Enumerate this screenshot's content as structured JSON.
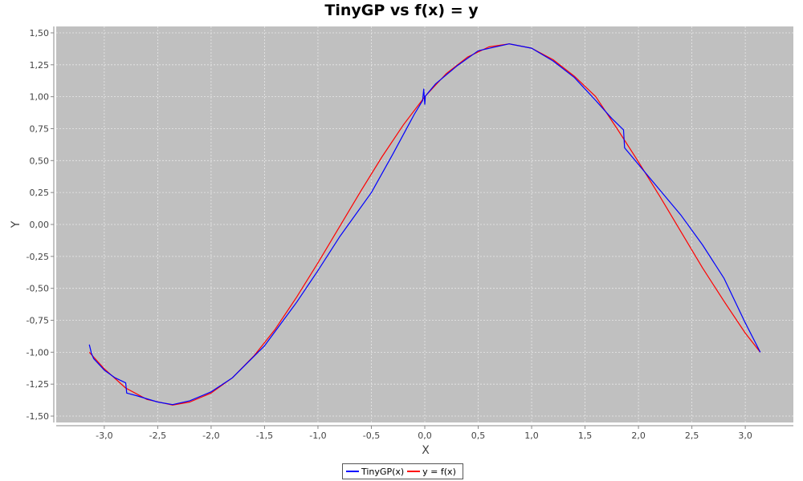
{
  "chart_data": {
    "type": "line",
    "title": "TinyGP vs f(x) = y",
    "xlabel": "X",
    "ylabel": "Y",
    "xlim": [
      -3.45,
      3.45
    ],
    "ylim": [
      -1.55,
      1.55
    ],
    "xticks": [
      "-3,0",
      "-2,5",
      "-2,0",
      "-1,5",
      "-1,0",
      "-0,5",
      "0,0",
      "0,5",
      "1,0",
      "1,5",
      "2,0",
      "2,5",
      "3,0"
    ],
    "yticks": [
      "1,50",
      "1,25",
      "1,00",
      "0,75",
      "0,50",
      "0,25",
      "0,00",
      "-0,25",
      "-0,50",
      "-0,75",
      "-1,00",
      "-1,25",
      "-1,50"
    ],
    "grid": true,
    "legend_position": "bottom",
    "colors": {
      "plot_bg": "#c0c0c0",
      "grid": "#e8e8e8",
      "tinygp": "#0000ff",
      "target": "#ff0000"
    },
    "series": [
      {
        "name": "TinyGP(x)",
        "x": [
          -3.14,
          -3.12,
          -3.1,
          -3.0,
          -2.9,
          -2.8,
          -2.79,
          -2.7,
          -2.5,
          -2.36,
          -2.2,
          -2.0,
          -1.8,
          -1.5,
          -1.2,
          -1.0,
          -0.8,
          -0.5,
          -0.3,
          -0.1,
          -0.02,
          -0.01,
          0.0,
          0.005,
          0.01,
          0.1,
          0.3,
          0.5,
          0.79,
          1.0,
          1.2,
          1.4,
          1.6,
          1.75,
          1.86,
          1.87,
          2.0,
          2.2,
          2.4,
          2.6,
          2.8,
          3.0,
          3.14
        ],
        "y": [
          -0.94,
          -1.01,
          -1.05,
          -1.14,
          -1.2,
          -1.24,
          -1.32,
          -1.34,
          -1.39,
          -1.41,
          -1.38,
          -1.31,
          -1.2,
          -0.95,
          -0.61,
          -0.36,
          -0.1,
          0.25,
          0.55,
          0.86,
          0.97,
          1.06,
          0.94,
          1.0,
          1.01,
          1.1,
          1.24,
          1.36,
          1.414,
          1.38,
          1.28,
          1.15,
          0.97,
          0.83,
          0.74,
          0.6,
          0.47,
          0.27,
          0.07,
          -0.16,
          -0.42,
          -0.77,
          -1.0
        ]
      },
      {
        "name": "y = f(x)",
        "x": [
          -3.14,
          -3.0,
          -2.8,
          -2.6,
          -2.36,
          -2.2,
          -2.0,
          -1.8,
          -1.6,
          -1.4,
          -1.2,
          -1.0,
          -0.8,
          -0.6,
          -0.4,
          -0.2,
          0.0,
          0.2,
          0.4,
          0.6,
          0.79,
          1.0,
          1.2,
          1.4,
          1.6,
          1.8,
          2.0,
          2.2,
          2.4,
          2.6,
          2.8,
          3.0,
          3.14
        ],
        "y": [
          -1.0,
          -1.13,
          -1.28,
          -1.37,
          -1.414,
          -1.39,
          -1.32,
          -1.2,
          -1.03,
          -0.82,
          -0.57,
          -0.3,
          -0.02,
          0.26,
          0.53,
          0.78,
          1.0,
          1.18,
          1.31,
          1.39,
          1.414,
          1.38,
          1.29,
          1.16,
          1.0,
          0.75,
          0.49,
          0.22,
          -0.06,
          -0.34,
          -0.6,
          -0.85,
          -1.0
        ]
      }
    ]
  }
}
